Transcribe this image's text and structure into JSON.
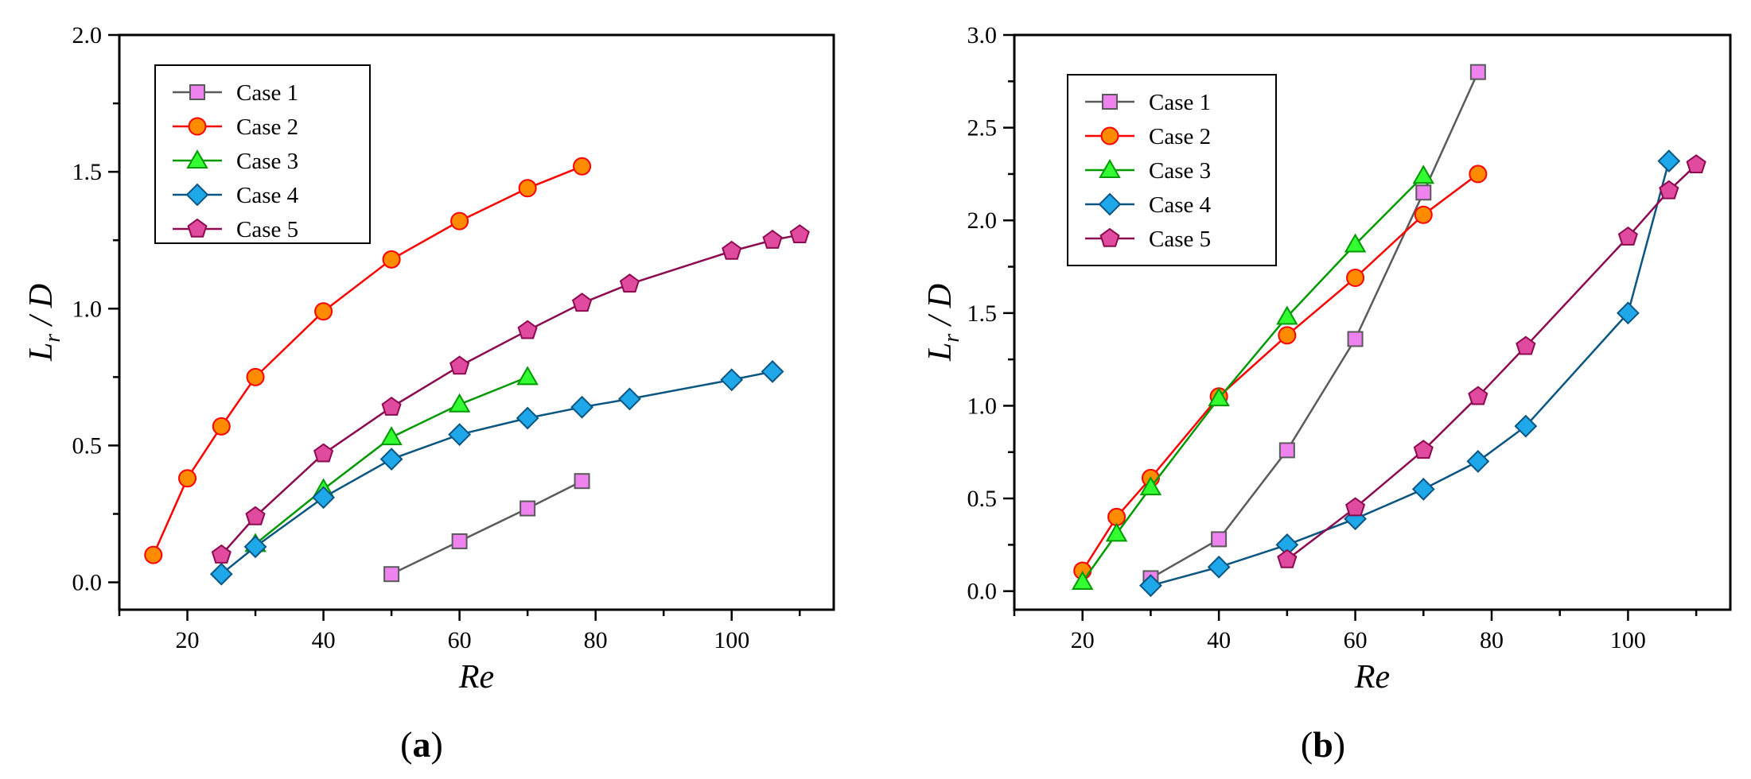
{
  "chart_data": [
    {
      "panel_label": "(a)",
      "type": "line",
      "xlabel": "Re",
      "ylabel_main": "L",
      "ylabel_sub": "r",
      "ylabel_tail": " / D",
      "xlim": [
        10,
        115
      ],
      "ylim": [
        -0.1,
        2.0
      ],
      "xticks": [
        20,
        40,
        60,
        80,
        100
      ],
      "yticks": [
        0.0,
        0.5,
        1.0,
        1.5,
        2.0
      ],
      "legend_position": "top-left",
      "series": [
        {
          "name": "Case 1",
          "marker": "square",
          "line_color": "#5a5a5a",
          "fill": "#ee82ee",
          "x": [
            50,
            60,
            70,
            78
          ],
          "y": [
            0.03,
            0.15,
            0.27,
            0.37
          ]
        },
        {
          "name": "Case 2",
          "marker": "circle",
          "line_color": "#ff0000",
          "fill": "#ff8c00",
          "x": [
            15,
            20,
            25,
            30,
            40,
            50,
            60,
            70,
            78
          ],
          "y": [
            0.1,
            0.38,
            0.57,
            0.75,
            0.99,
            1.18,
            1.32,
            1.44,
            1.52
          ]
        },
        {
          "name": "Case 3",
          "marker": "triangle",
          "line_color": "#009900",
          "fill": "#33ff33",
          "x": [
            30,
            40,
            50,
            60,
            70
          ],
          "y": [
            0.14,
            0.34,
            0.53,
            0.65,
            0.75
          ]
        },
        {
          "name": "Case 4",
          "marker": "diamond",
          "line_color": "#0b5680",
          "fill": "#1ea8ea",
          "x": [
            25,
            30,
            40,
            50,
            60,
            70,
            78,
            85,
            100,
            106
          ],
          "y": [
            0.03,
            0.13,
            0.31,
            0.45,
            0.54,
            0.6,
            0.64,
            0.67,
            0.74,
            0.77
          ]
        },
        {
          "name": "Case 5",
          "marker": "pentagon",
          "line_color": "#8b0a50",
          "fill": "#e04a9f",
          "x": [
            25,
            30,
            40,
            50,
            60,
            70,
            78,
            85,
            100,
            106,
            110
          ],
          "y": [
            0.1,
            0.24,
            0.47,
            0.64,
            0.79,
            0.92,
            1.02,
            1.09,
            1.21,
            1.25,
            1.27
          ]
        }
      ]
    },
    {
      "panel_label": "(b)",
      "type": "line",
      "xlabel": "Re",
      "ylabel_main": "L",
      "ylabel_sub": "r",
      "ylabel_tail": " / D",
      "xlim": [
        10,
        115
      ],
      "ylim": [
        -0.1,
        3.0
      ],
      "xticks": [
        20,
        40,
        60,
        80,
        100
      ],
      "yticks": [
        0.0,
        0.5,
        1.0,
        1.5,
        2.0,
        2.5,
        3.0
      ],
      "legend_position": "top-left",
      "series": [
        {
          "name": "Case 1",
          "marker": "square",
          "line_color": "#5a5a5a",
          "fill": "#ee82ee",
          "x": [
            30,
            40,
            50,
            60,
            70,
            78
          ],
          "y": [
            0.07,
            0.28,
            0.76,
            1.36,
            2.15,
            2.8
          ]
        },
        {
          "name": "Case 2",
          "marker": "circle",
          "line_color": "#ff0000",
          "fill": "#ff8c00",
          "x": [
            20,
            25,
            30,
            40,
            50,
            60,
            70,
            78
          ],
          "y": [
            0.11,
            0.4,
            0.61,
            1.05,
            1.38,
            1.69,
            2.03,
            2.25
          ]
        },
        {
          "name": "Case 3",
          "marker": "triangle",
          "line_color": "#009900",
          "fill": "#33ff33",
          "x": [
            20,
            25,
            30,
            40,
            50,
            60,
            70
          ],
          "y": [
            0.05,
            0.31,
            0.56,
            1.04,
            1.48,
            1.87,
            2.24
          ]
        },
        {
          "name": "Case 4",
          "marker": "diamond",
          "line_color": "#0b5680",
          "fill": "#1ea8ea",
          "x": [
            30,
            40,
            50,
            60,
            70,
            78,
            85,
            100,
            106
          ],
          "y": [
            0.03,
            0.13,
            0.25,
            0.39,
            0.55,
            0.7,
            0.89,
            1.5,
            2.32
          ]
        },
        {
          "name": "Case 5",
          "marker": "pentagon",
          "line_color": "#8b0a50",
          "fill": "#e04a9f",
          "x": [
            50,
            60,
            70,
            78,
            85,
            100,
            106,
            110
          ],
          "y": [
            0.17,
            0.45,
            0.76,
            1.05,
            1.32,
            1.91,
            2.16,
            2.3
          ]
        }
      ]
    }
  ]
}
